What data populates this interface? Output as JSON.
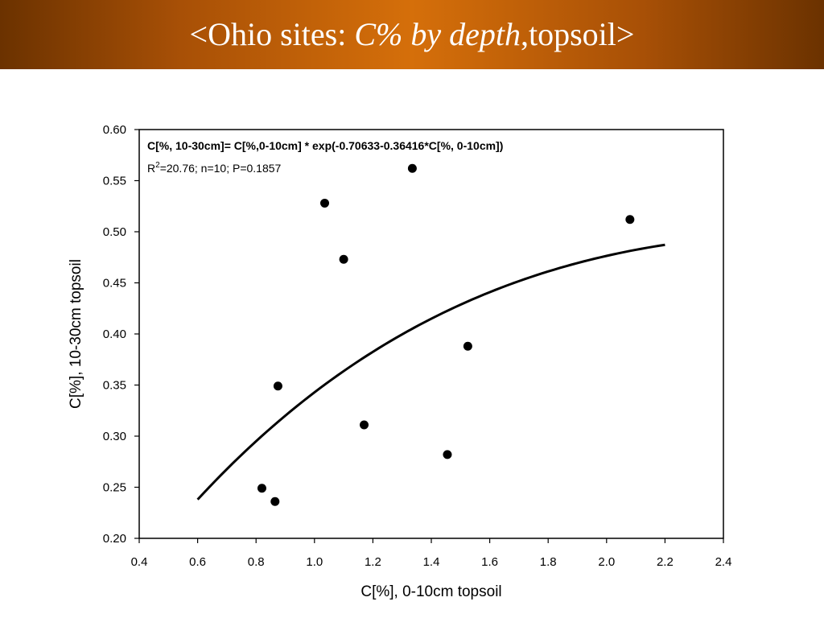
{
  "header": {
    "title_prefix": "<Ohio sites: ",
    "title_italic": "C% by depth",
    "title_suffix": ",topsoil>"
  },
  "chart_data": {
    "type": "scatter",
    "xlabel": "C[%], 0-10cm topsoil",
    "ylabel": "C[%], 10-30cm topsoil",
    "xlim": [
      0.4,
      2.4
    ],
    "ylim": [
      0.2,
      0.6
    ],
    "x_ticks": [
      "0.4",
      "0.6",
      "0.8",
      "1.0",
      "1.2",
      "1.4",
      "1.6",
      "1.8",
      "2.0",
      "2.2",
      "2.4"
    ],
    "y_ticks": [
      "0.20",
      "0.25",
      "0.30",
      "0.35",
      "0.40",
      "0.45",
      "0.50",
      "0.55",
      "0.60"
    ],
    "grid": false,
    "equation": "C[%, 10-30cm]= C[%,0-10cm] * exp(-0.70633-0.36416*C[%, 0-10cm])",
    "stats_prefix": "R",
    "stats_superscript": "2",
    "stats_suffix": "=20.76;  n=10;  P=0.1857",
    "points": [
      {
        "x": 0.82,
        "y": 0.249
      },
      {
        "x": 0.865,
        "y": 0.236
      },
      {
        "x": 0.875,
        "y": 0.349
      },
      {
        "x": 1.035,
        "y": 0.528
      },
      {
        "x": 1.1,
        "y": 0.473
      },
      {
        "x": 1.17,
        "y": 0.311
      },
      {
        "x": 1.335,
        "y": 0.562
      },
      {
        "x": 1.455,
        "y": 0.282
      },
      {
        "x": 1.525,
        "y": 0.388
      },
      {
        "x": 2.08,
        "y": 0.512
      }
    ],
    "fit": {
      "x_range": [
        0.6,
        2.2
      ],
      "a": -0.70633,
      "b": -0.36416
    }
  }
}
